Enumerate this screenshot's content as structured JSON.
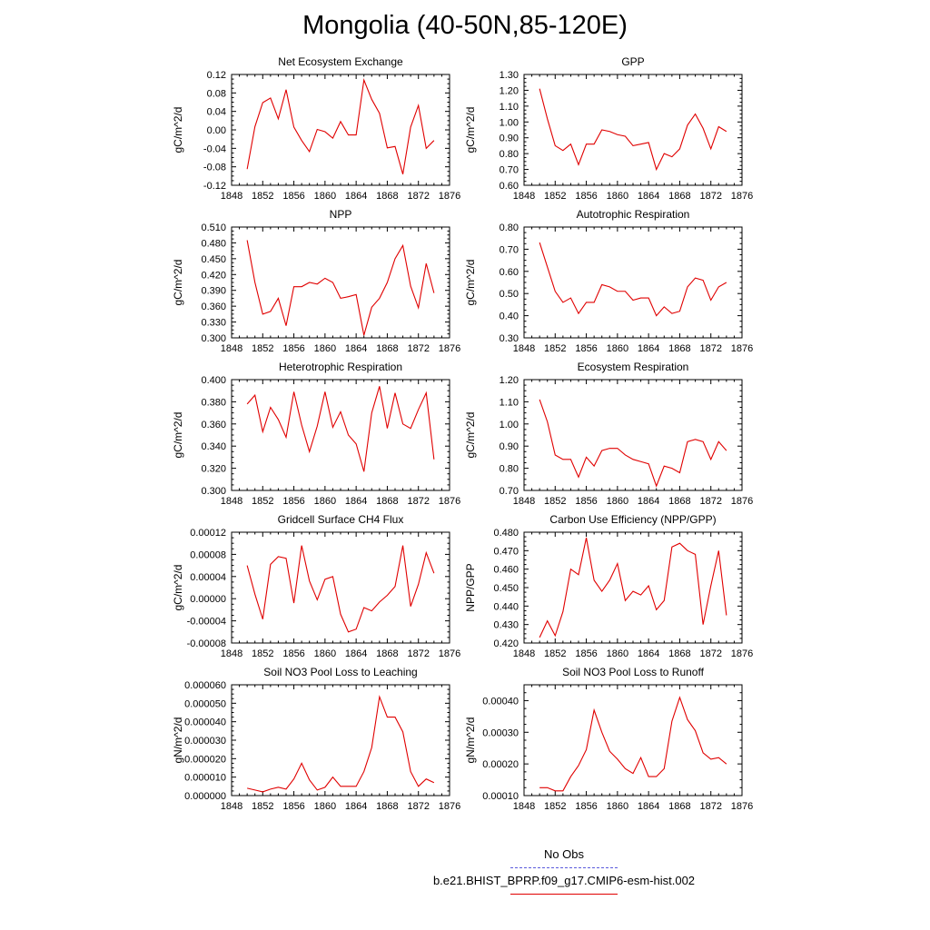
{
  "title": "Mongolia (40-50N,85-120E)",
  "legend": {
    "obs": {
      "label": "No Obs",
      "color": "#5a5adc",
      "style": "dashed"
    },
    "model": {
      "label": "b.e21.BHIST_BPRP.f09_g17.CMIP6-esm-hist.002",
      "color": "#e00000",
      "style": "solid"
    }
  },
  "chart_data": [
    {
      "type": "line",
      "title": "Net Ecosystem Exchange",
      "ylabel": "gC/m^2/d",
      "xlim": [
        1848,
        1876
      ],
      "xticks": [
        "1848",
        "1852",
        "1856",
        "1860",
        "1864",
        "1868",
        "1872",
        "1876"
      ],
      "ylim": [
        -0.12,
        0.12
      ],
      "yticks": [
        "-0.12",
        "-0.08",
        "-0.04",
        "0.00",
        "0.04",
        "0.08",
        "0.12"
      ],
      "series": [
        {
          "color": "#e00000",
          "x": [
            1850,
            1851,
            1852,
            1853,
            1854,
            1855,
            1856,
            1857,
            1858,
            1859,
            1860,
            1861,
            1862,
            1863,
            1864,
            1865,
            1866,
            1867,
            1868,
            1869,
            1870,
            1871,
            1872,
            1873,
            1874
          ],
          "values": [
            -0.085,
            0.007,
            0.059,
            0.069,
            0.024,
            0.087,
            0.006,
            -0.023,
            -0.047,
            0.001,
            -0.004,
            -0.018,
            0.018,
            -0.011,
            -0.011,
            0.108,
            0.066,
            0.036,
            -0.039,
            -0.036,
            -0.096,
            0.006,
            0.053,
            -0.04,
            -0.023
          ]
        }
      ]
    },
    {
      "type": "line",
      "title": "GPP",
      "ylabel": "gC/m^2/d",
      "xlim": [
        1848,
        1876
      ],
      "xticks": [
        "1848",
        "1852",
        "1856",
        "1860",
        "1864",
        "1868",
        "1872",
        "1876"
      ],
      "ylim": [
        0.6,
        1.3
      ],
      "yticks": [
        "0.60",
        "0.70",
        "0.80",
        "0.90",
        "1.00",
        "1.10",
        "1.20",
        "1.30"
      ],
      "series": [
        {
          "color": "#e00000",
          "x": [
            1850,
            1851,
            1852,
            1853,
            1854,
            1855,
            1856,
            1857,
            1858,
            1859,
            1860,
            1861,
            1862,
            1863,
            1864,
            1865,
            1866,
            1867,
            1868,
            1869,
            1870,
            1871,
            1872,
            1873,
            1874
          ],
          "values": [
            1.21,
            1.02,
            0.85,
            0.82,
            0.86,
            0.73,
            0.86,
            0.86,
            0.95,
            0.94,
            0.92,
            0.91,
            0.85,
            0.86,
            0.87,
            0.7,
            0.8,
            0.78,
            0.83,
            0.98,
            1.05,
            0.96,
            0.83,
            0.97,
            0.94
          ]
        }
      ]
    },
    {
      "type": "line",
      "title": "NPP",
      "ylabel": "gC/m^2/d",
      "xlim": [
        1848,
        1876
      ],
      "xticks": [
        "1848",
        "1852",
        "1856",
        "1860",
        "1864",
        "1868",
        "1872",
        "1876"
      ],
      "ylim": [
        0.3,
        0.51
      ],
      "yticks": [
        "0.300",
        "0.330",
        "0.360",
        "0.390",
        "0.420",
        "0.450",
        "0.480",
        "0.510"
      ],
      "series": [
        {
          "color": "#e00000",
          "x": [
            1850,
            1851,
            1852,
            1853,
            1854,
            1855,
            1856,
            1857,
            1858,
            1859,
            1860,
            1861,
            1862,
            1863,
            1864,
            1865,
            1866,
            1867,
            1868,
            1869,
            1870,
            1871,
            1872,
            1873,
            1874
          ],
          "values": [
            0.485,
            0.405,
            0.345,
            0.35,
            0.375,
            0.323,
            0.397,
            0.397,
            0.405,
            0.402,
            0.413,
            0.405,
            0.375,
            0.378,
            0.382,
            0.305,
            0.358,
            0.375,
            0.405,
            0.45,
            0.475,
            0.398,
            0.357,
            0.441,
            0.385
          ]
        }
      ]
    },
    {
      "type": "line",
      "title": "Autotrophic Respiration",
      "ylabel": "gC/m^2/d",
      "xlim": [
        1848,
        1876
      ],
      "xticks": [
        "1848",
        "1852",
        "1856",
        "1860",
        "1864",
        "1868",
        "1872",
        "1876"
      ],
      "ylim": [
        0.3,
        0.8
      ],
      "yticks": [
        "0.30",
        "0.40",
        "0.50",
        "0.60",
        "0.70",
        "0.80"
      ],
      "series": [
        {
          "color": "#e00000",
          "x": [
            1850,
            1851,
            1852,
            1853,
            1854,
            1855,
            1856,
            1857,
            1858,
            1859,
            1860,
            1861,
            1862,
            1863,
            1864,
            1865,
            1866,
            1867,
            1868,
            1869,
            1870,
            1871,
            1872,
            1873,
            1874
          ],
          "values": [
            0.73,
            0.62,
            0.51,
            0.46,
            0.48,
            0.41,
            0.46,
            0.46,
            0.54,
            0.53,
            0.51,
            0.51,
            0.47,
            0.48,
            0.48,
            0.4,
            0.44,
            0.41,
            0.42,
            0.53,
            0.57,
            0.56,
            0.47,
            0.53,
            0.55
          ]
        }
      ]
    },
    {
      "type": "line",
      "title": "Heterotrophic Respiration",
      "ylabel": "gC/m^2/d",
      "xlim": [
        1848,
        1876
      ],
      "xticks": [
        "1848",
        "1852",
        "1856",
        "1860",
        "1864",
        "1868",
        "1872",
        "1876"
      ],
      "ylim": [
        0.3,
        0.4
      ],
      "yticks": [
        "0.300",
        "0.320",
        "0.340",
        "0.360",
        "0.380",
        "0.400"
      ],
      "series": [
        {
          "color": "#e00000",
          "x": [
            1850,
            1851,
            1852,
            1853,
            1854,
            1855,
            1856,
            1857,
            1858,
            1859,
            1860,
            1861,
            1862,
            1863,
            1864,
            1865,
            1866,
            1867,
            1868,
            1869,
            1870,
            1871,
            1872,
            1873,
            1874
          ],
          "values": [
            0.378,
            0.386,
            0.353,
            0.375,
            0.364,
            0.348,
            0.389,
            0.359,
            0.335,
            0.358,
            0.389,
            0.357,
            0.371,
            0.35,
            0.342,
            0.317,
            0.37,
            0.394,
            0.356,
            0.388,
            0.36,
            0.356,
            0.373,
            0.388,
            0.328
          ]
        }
      ]
    },
    {
      "type": "line",
      "title": "Ecosystem Respiration",
      "ylabel": "gC/m^2/d",
      "xlim": [
        1848,
        1876
      ],
      "xticks": [
        "1848",
        "1852",
        "1856",
        "1860",
        "1864",
        "1868",
        "1872",
        "1876"
      ],
      "ylim": [
        0.7,
        1.2
      ],
      "yticks": [
        "0.70",
        "0.80",
        "0.90",
        "1.00",
        "1.10",
        "1.20"
      ],
      "series": [
        {
          "color": "#e00000",
          "x": [
            1850,
            1851,
            1852,
            1853,
            1854,
            1855,
            1856,
            1857,
            1858,
            1859,
            1860,
            1861,
            1862,
            1863,
            1864,
            1865,
            1866,
            1867,
            1868,
            1869,
            1870,
            1871,
            1872,
            1873,
            1874
          ],
          "values": [
            1.11,
            1.01,
            0.86,
            0.84,
            0.84,
            0.76,
            0.85,
            0.81,
            0.88,
            0.89,
            0.89,
            0.86,
            0.84,
            0.83,
            0.82,
            0.72,
            0.81,
            0.8,
            0.78,
            0.92,
            0.93,
            0.92,
            0.84,
            0.92,
            0.88
          ]
        }
      ]
    },
    {
      "type": "line",
      "title": "Gridcell Surface CH4 Flux",
      "ylabel": "gC/m^2/d",
      "xlim": [
        1848,
        1876
      ],
      "xticks": [
        "1848",
        "1852",
        "1856",
        "1860",
        "1864",
        "1868",
        "1872",
        "1876"
      ],
      "ylim": [
        -8e-05,
        0.00012
      ],
      "yticks": [
        "-0.00008",
        "-0.00004",
        "0.00000",
        "0.00004",
        "0.00008",
        "0.00012"
      ],
      "series": [
        {
          "color": "#e00000",
          "x": [
            1850,
            1851,
            1852,
            1853,
            1854,
            1855,
            1856,
            1857,
            1858,
            1859,
            1860,
            1861,
            1862,
            1863,
            1864,
            1865,
            1866,
            1867,
            1868,
            1869,
            1870,
            1871,
            1872,
            1873,
            1874
          ],
          "values": [
            6e-05,
            8e-06,
            -3.7e-05,
            6.2e-05,
            7.6e-05,
            7.3e-05,
            -8e-06,
            9.6e-05,
            3.2e-05,
            -2e-06,
            3.5e-05,
            4e-05,
            -2.8e-05,
            -6e-05,
            -5.5e-05,
            -1.6e-05,
            -2.2e-05,
            -6e-06,
            6e-06,
            2.2e-05,
            9.6e-05,
            -1.4e-05,
            2.6e-05,
            8.3e-05,
            4.6e-05
          ]
        }
      ]
    },
    {
      "type": "line",
      "title": "Carbon Use Efficiency (NPP/GPP)",
      "ylabel": "NPP/GPP",
      "xlim": [
        1848,
        1876
      ],
      "xticks": [
        "1848",
        "1852",
        "1856",
        "1860",
        "1864",
        "1868",
        "1872",
        "1876"
      ],
      "ylim": [
        0.42,
        0.48
      ],
      "yticks": [
        "0.420",
        "0.430",
        "0.440",
        "0.450",
        "0.460",
        "0.470",
        "0.480"
      ],
      "series": [
        {
          "color": "#e00000",
          "x": [
            1850,
            1851,
            1852,
            1853,
            1854,
            1855,
            1856,
            1857,
            1858,
            1859,
            1860,
            1861,
            1862,
            1863,
            1864,
            1865,
            1866,
            1867,
            1868,
            1869,
            1870,
            1871,
            1872,
            1873,
            1874
          ],
          "values": [
            0.423,
            0.432,
            0.424,
            0.437,
            0.46,
            0.457,
            0.477,
            0.454,
            0.448,
            0.454,
            0.463,
            0.443,
            0.448,
            0.446,
            0.451,
            0.438,
            0.443,
            0.472,
            0.474,
            0.47,
            0.468,
            0.43,
            0.451,
            0.47,
            0.435
          ]
        }
      ]
    },
    {
      "type": "line",
      "title": "Soil NO3 Pool Loss to Leaching",
      "ylabel": "gN/m^2/d",
      "xlim": [
        1848,
        1876
      ],
      "xticks": [
        "1848",
        "1852",
        "1856",
        "1860",
        "1864",
        "1868",
        "1872",
        "1876"
      ],
      "ylim": [
        0,
        6e-05
      ],
      "yticks": [
        "0.000000",
        "0.000010",
        "0.000020",
        "0.000030",
        "0.000040",
        "0.000050",
        "0.000060"
      ],
      "series": [
        {
          "color": "#e00000",
          "x": [
            1850,
            1851,
            1852,
            1853,
            1854,
            1855,
            1856,
            1857,
            1858,
            1859,
            1860,
            1861,
            1862,
            1863,
            1864,
            1865,
            1866,
            1867,
            1868,
            1869,
            1870,
            1871,
            1872,
            1873,
            1874
          ],
          "values": [
            4e-06,
            3e-06,
            2e-06,
            3.5e-06,
            4.5e-06,
            3.5e-06,
            9e-06,
            1.75e-05,
            8.5e-06,
            3e-06,
            4.5e-06,
            1e-05,
            5e-06,
            5e-06,
            5e-06,
            1.3e-05,
            2.6e-05,
            5.35e-05,
            4.25e-05,
            4.25e-05,
            3.45e-05,
            1.3e-05,
            5e-06,
            9e-06,
            7e-06
          ]
        }
      ]
    },
    {
      "type": "line",
      "title": "Soil NO3 Pool Loss to Runoff",
      "ylabel": "gN/m^2/d",
      "xlim": [
        1848,
        1876
      ],
      "xticks": [
        "1848",
        "1852",
        "1856",
        "1860",
        "1864",
        "1868",
        "1872",
        "1876"
      ],
      "ylim": [
        0.0001,
        0.00045
      ],
      "yticks": [
        "0.00010",
        "0.00020",
        "0.00030",
        "0.00040"
      ],
      "series": [
        {
          "color": "#e00000",
          "x": [
            1850,
            1851,
            1852,
            1853,
            1854,
            1855,
            1856,
            1857,
            1858,
            1859,
            1860,
            1861,
            1862,
            1863,
            1864,
            1865,
            1866,
            1867,
            1868,
            1869,
            1870,
            1871,
            1872,
            1873,
            1874
          ],
          "values": [
            0.000125,
            0.000125,
            0.000115,
            0.000115,
            0.00016,
            0.000195,
            0.000245,
            0.00037,
            0.0003,
            0.00024,
            0.000215,
            0.000185,
            0.00017,
            0.00022,
            0.00016,
            0.00016,
            0.000185,
            0.000335,
            0.00041,
            0.00034,
            0.000305,
            0.000235,
            0.000215,
            0.00022,
            0.0002
          ]
        }
      ]
    }
  ]
}
